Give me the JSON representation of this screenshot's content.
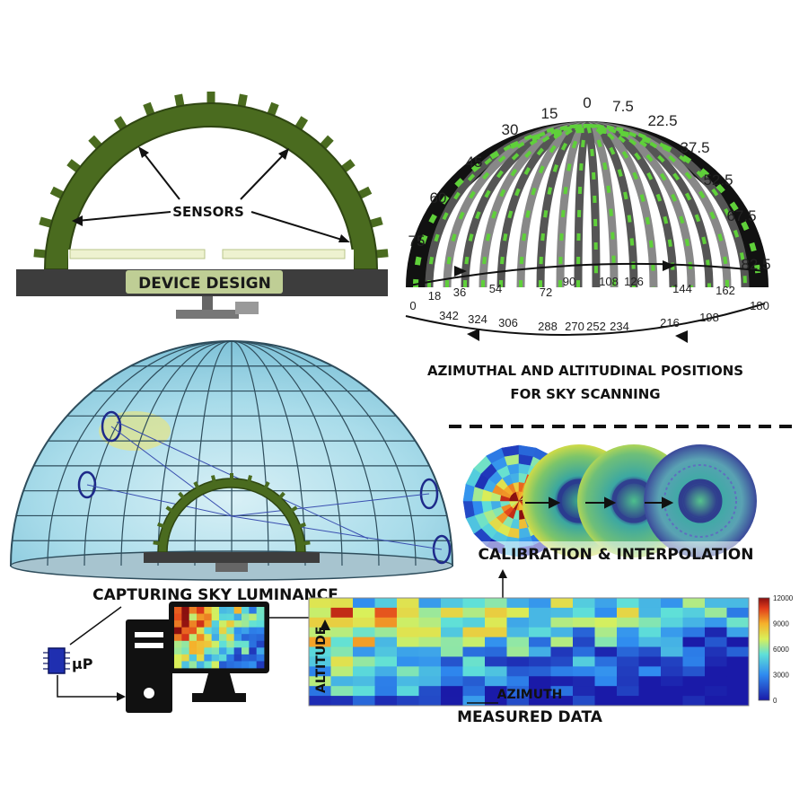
{
  "device_design": {
    "sensors_label": "SENSORS",
    "title": "DEVICE DESIGN"
  },
  "scanning": {
    "top_angles": [
      "0",
      "7.5",
      "15",
      "22.5",
      "30",
      "37.5",
      "45",
      "52.5",
      "60",
      "67.5",
      "75",
      "82.5"
    ],
    "bottom_row1": [
      "0",
      "18",
      "36",
      "54",
      "72",
      "90",
      "108",
      "126",
      "144",
      "162",
      "180"
    ],
    "bottom_row2": [
      "342",
      "324",
      "306",
      "288",
      "270",
      "252",
      "234",
      "216",
      "198"
    ],
    "title_line1": "AZIMUTHAL AND ALTITUDINAL POSITIONS",
    "title_line2": "FOR SKY SCANNING"
  },
  "capture": {
    "title": "CAPTURING SKY LUMINANCE",
    "processor_label": "µP"
  },
  "calibration": {
    "title": "CALIBRATION & INTERPOLATION"
  },
  "measured": {
    "y_label": "ALTITUDE",
    "x_label": "AZIMUTH",
    "title": "MEASURED DATA",
    "colorbar_ticks": [
      "12000",
      "9000",
      "6000",
      "3000",
      "0"
    ],
    "colorbar_range": [
      0,
      12000
    ]
  },
  "colors": {
    "device_green": "#4a6b1f",
    "base_dark": "#3d3d3d",
    "accent_green": "#5fd03a",
    "dome_blue": "#9fd4e6"
  }
}
